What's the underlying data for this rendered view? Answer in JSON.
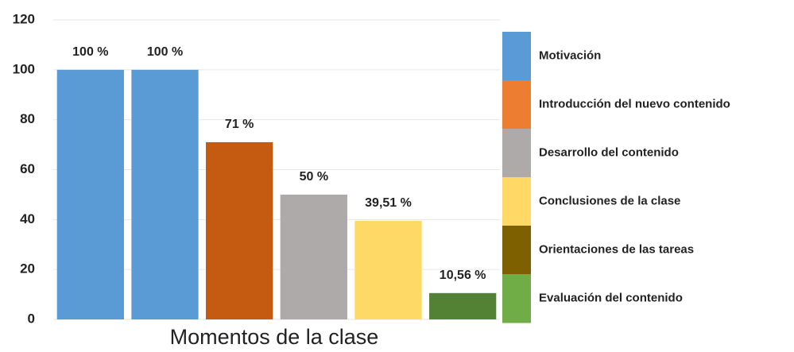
{
  "chart_data": {
    "type": "bar",
    "x_label": "Momentos de la clase",
    "categories": [
      "Motivación",
      "Introducción del nuevo contenido",
      "Desarrollo del contenido",
      "Conclusiones de la clase",
      "Orientaciones de las tareas",
      "Evaluación del contenido"
    ],
    "values": [
      100,
      100,
      71,
      50,
      39.51,
      10.56
    ],
    "value_labels": [
      "100 %",
      "100 %",
      "71 %",
      "50 %",
      "39,51 %",
      "10,56 %"
    ],
    "colors": [
      "#5b9bd5",
      "#5b9bd5",
      "#c55a11",
      "#aeaaaa",
      "#ffd966",
      "#548235"
    ],
    "legend_colors": [
      "#5b9bd5",
      "#ed7d31",
      "#aeaaaa",
      "#ffd966",
      "#7f6000",
      "#70ad47"
    ],
    "ylim": [
      0,
      120
    ],
    "yticks": [
      0,
      20,
      40,
      60,
      80,
      100,
      120
    ],
    "grid": true
  }
}
